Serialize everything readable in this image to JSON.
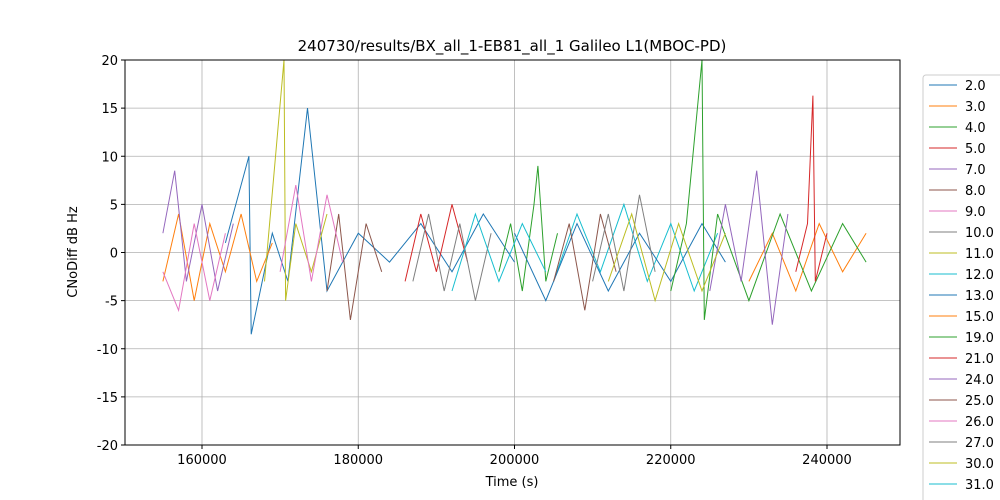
{
  "chart_data": {
    "type": "line",
    "title": "240730/results/BX_all_1-EB81_all_1 Galileo L1(MBOC-PD)",
    "x_label": "Time (s)",
    "y_label": "CNoDiff dB Hz",
    "xlim": [
      150144,
      249344
    ],
    "xticks": [
      160000,
      180000,
      200000,
      220000,
      240000
    ],
    "ylim": [
      -20,
      20
    ],
    "yticks": [
      -20,
      -15,
      -10,
      -5,
      0,
      5,
      10,
      15,
      20
    ],
    "grid": true,
    "legend_position": "outside-right",
    "series": [
      {
        "name": "2.0",
        "color": "#1f77b4",
        "x": [
          163000,
          166000,
          166300,
          169000,
          171000,
          173500,
          176000,
          180000,
          184000,
          188000,
          192000,
          196000,
          200000
        ],
        "values": [
          1,
          10,
          -8.5,
          2,
          -3,
          15,
          -4,
          2,
          -1,
          3,
          -2,
          4,
          -1
        ]
      },
      {
        "name": "3.0",
        "color": "#ff7f0e",
        "x": [
          155000,
          157000,
          159000,
          161000,
          163000,
          165000,
          167000,
          169000
        ],
        "values": [
          -3,
          4,
          -5,
          3,
          -2,
          4,
          -3,
          1
        ]
      },
      {
        "name": "4.0",
        "color": "#2ca02c",
        "x": [
          198000,
          199500,
          201000,
          202500,
          203000,
          204000,
          205500
        ],
        "values": [
          -2,
          3,
          -4,
          5,
          9,
          -3,
          2
        ]
      },
      {
        "name": "5.0",
        "color": "#d62728",
        "x": [
          186000,
          188000,
          190000,
          192000,
          194000
        ],
        "values": [
          -3,
          4,
          -2,
          5,
          -1
        ]
      },
      {
        "name": "7.0",
        "color": "#9467bd",
        "x": [
          155000,
          156500,
          158000,
          160000,
          162000,
          164000
        ],
        "values": [
          2,
          8.5,
          -3,
          5,
          -4,
          3
        ]
      },
      {
        "name": "8.0",
        "color": "#8c564b",
        "x": [
          176000,
          177500,
          179000,
          181000,
          183000
        ],
        "values": [
          -4,
          4,
          -7,
          3,
          -2
        ]
      },
      {
        "name": "9.0",
        "color": "#e377c2",
        "x": [
          155000,
          157000,
          159000,
          161000,
          163000
        ],
        "values": [
          -2,
          -6,
          3,
          -5,
          2
        ]
      },
      {
        "name": "10.0",
        "color": "#7f7f7f",
        "x": [
          187000,
          189000,
          191000,
          193000,
          195000,
          197000
        ],
        "values": [
          -3,
          4,
          -4,
          3,
          -5,
          2
        ]
      },
      {
        "name": "11.0",
        "color": "#bcbd22",
        "x": [
          168000,
          170500,
          170700,
          172000,
          174000,
          176000
        ],
        "values": [
          -3,
          20,
          -5,
          3,
          -2,
          4
        ]
      },
      {
        "name": "12.0",
        "color": "#17becf",
        "x": [
          205000,
          208000,
          211000,
          214000,
          217000,
          220000,
          223000,
          226000
        ],
        "values": [
          -3,
          4,
          -2,
          5,
          -3,
          3,
          -4,
          2
        ]
      },
      {
        "name": "13.0",
        "color": "#1f77b4",
        "x": [
          200000,
          204000,
          208000,
          212000,
          216000,
          220000,
          224000,
          227000
        ],
        "values": [
          2,
          -5,
          3,
          -4,
          2,
          -3,
          3,
          -1
        ]
      },
      {
        "name": "15.0",
        "color": "#ff7f0e",
        "x": [
          230000,
          233000,
          236000,
          239000,
          242000,
          245000
        ],
        "values": [
          -3,
          2,
          -4,
          3,
          -2,
          2
        ]
      },
      {
        "name": "19.0",
        "color": "#2ca02c",
        "x": [
          220000,
          222000,
          224000,
          224300,
          226000,
          230000,
          234000,
          238000,
          242000,
          245000
        ],
        "values": [
          -4,
          3,
          20,
          -7,
          4,
          -5,
          4,
          -4,
          3,
          -1
        ]
      },
      {
        "name": "21.0",
        "color": "#d62728",
        "x": [
          236000,
          237500,
          238200,
          238500,
          240000
        ],
        "values": [
          -2,
          3,
          16.3,
          -3,
          2
        ]
      },
      {
        "name": "24.0",
        "color": "#9467bd",
        "x": [
          225000,
          227000,
          229000,
          231000,
          233000,
          235000
        ],
        "values": [
          -4,
          5,
          -3,
          8.5,
          -7.5,
          4
        ]
      },
      {
        "name": "25.0",
        "color": "#8c564b",
        "x": [
          205000,
          207000,
          209000,
          211000,
          213000
        ],
        "values": [
          -3,
          3,
          -6,
          4,
          -2
        ]
      },
      {
        "name": "26.0",
        "color": "#e377c2",
        "x": [
          170000,
          172000,
          174000,
          176000,
          178000
        ],
        "values": [
          -2,
          7,
          -3,
          6,
          -1
        ]
      },
      {
        "name": "27.0",
        "color": "#7f7f7f",
        "x": [
          210000,
          212000,
          214000,
          216000,
          218000
        ],
        "values": [
          -3,
          4,
          -4,
          6,
          -2
        ]
      },
      {
        "name": "30.0",
        "color": "#bcbd22",
        "x": [
          212000,
          215000,
          218000,
          221000,
          224000,
          227000
        ],
        "values": [
          -3,
          4,
          -5,
          3,
          -4,
          2
        ]
      },
      {
        "name": "31.0",
        "color": "#17becf",
        "x": [
          192000,
          195000,
          198000,
          201000,
          204000
        ],
        "values": [
          -4,
          4,
          -3,
          3,
          -2
        ]
      }
    ]
  }
}
